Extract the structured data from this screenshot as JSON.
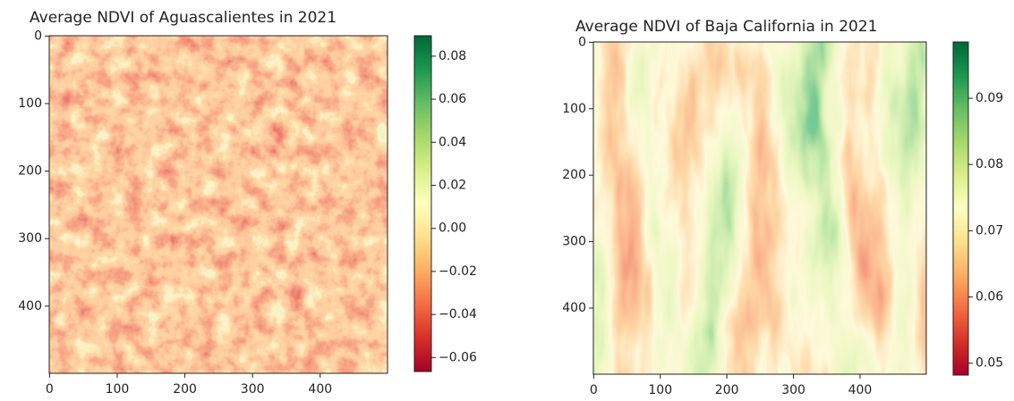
{
  "chart_data": [
    {
      "type": "heatmap",
      "title": "Average NDVI of Aguascalientes in 2021",
      "xlim": [
        -0.5,
        499.5
      ],
      "xticks": [
        0,
        100,
        200,
        300,
        400
      ],
      "ylim": [
        499.5,
        -0.5
      ],
      "yticks": [
        0,
        100,
        200,
        300,
        400
      ],
      "colormap": [
        "#a50026",
        "#d73027",
        "#f46d43",
        "#fdae61",
        "#fee08b",
        "#ffffbf",
        "#d9ef8b",
        "#a6d96a",
        "#66bd63",
        "#1a9850",
        "#006837"
      ],
      "colorbar": {
        "lim": [
          -0.0665,
          0.0895
        ],
        "ticks": [
          {
            "value": -0.06,
            "label": "−0.06"
          },
          {
            "value": -0.04,
            "label": "−0.04"
          },
          {
            "value": -0.02,
            "label": "−0.02"
          },
          {
            "value": 0,
            "label": "0.00"
          },
          0.02,
          0.04,
          0.06,
          0.08
        ]
      }
    },
    {
      "type": "heatmap",
      "title": "Average NDVI of Baja California in 2021",
      "xlim": [
        -0.5,
        499.5
      ],
      "xticks": [
        0,
        100,
        200,
        300,
        400
      ],
      "ylim": [
        499.5,
        -0.5
      ],
      "yticks": [
        0,
        100,
        200,
        300,
        400
      ],
      "colormap": [
        "#a50026",
        "#d73027",
        "#f46d43",
        "#fdae61",
        "#fee08b",
        "#ffffbf",
        "#d9ef8b",
        "#a6d96a",
        "#66bd63",
        "#1a9850",
        "#006837"
      ],
      "colorbar": {
        "lim": [
          0.0482,
          0.0985
        ],
        "ticks": [
          0.05,
          0.06,
          0.07,
          0.08,
          0.09
        ]
      }
    }
  ]
}
